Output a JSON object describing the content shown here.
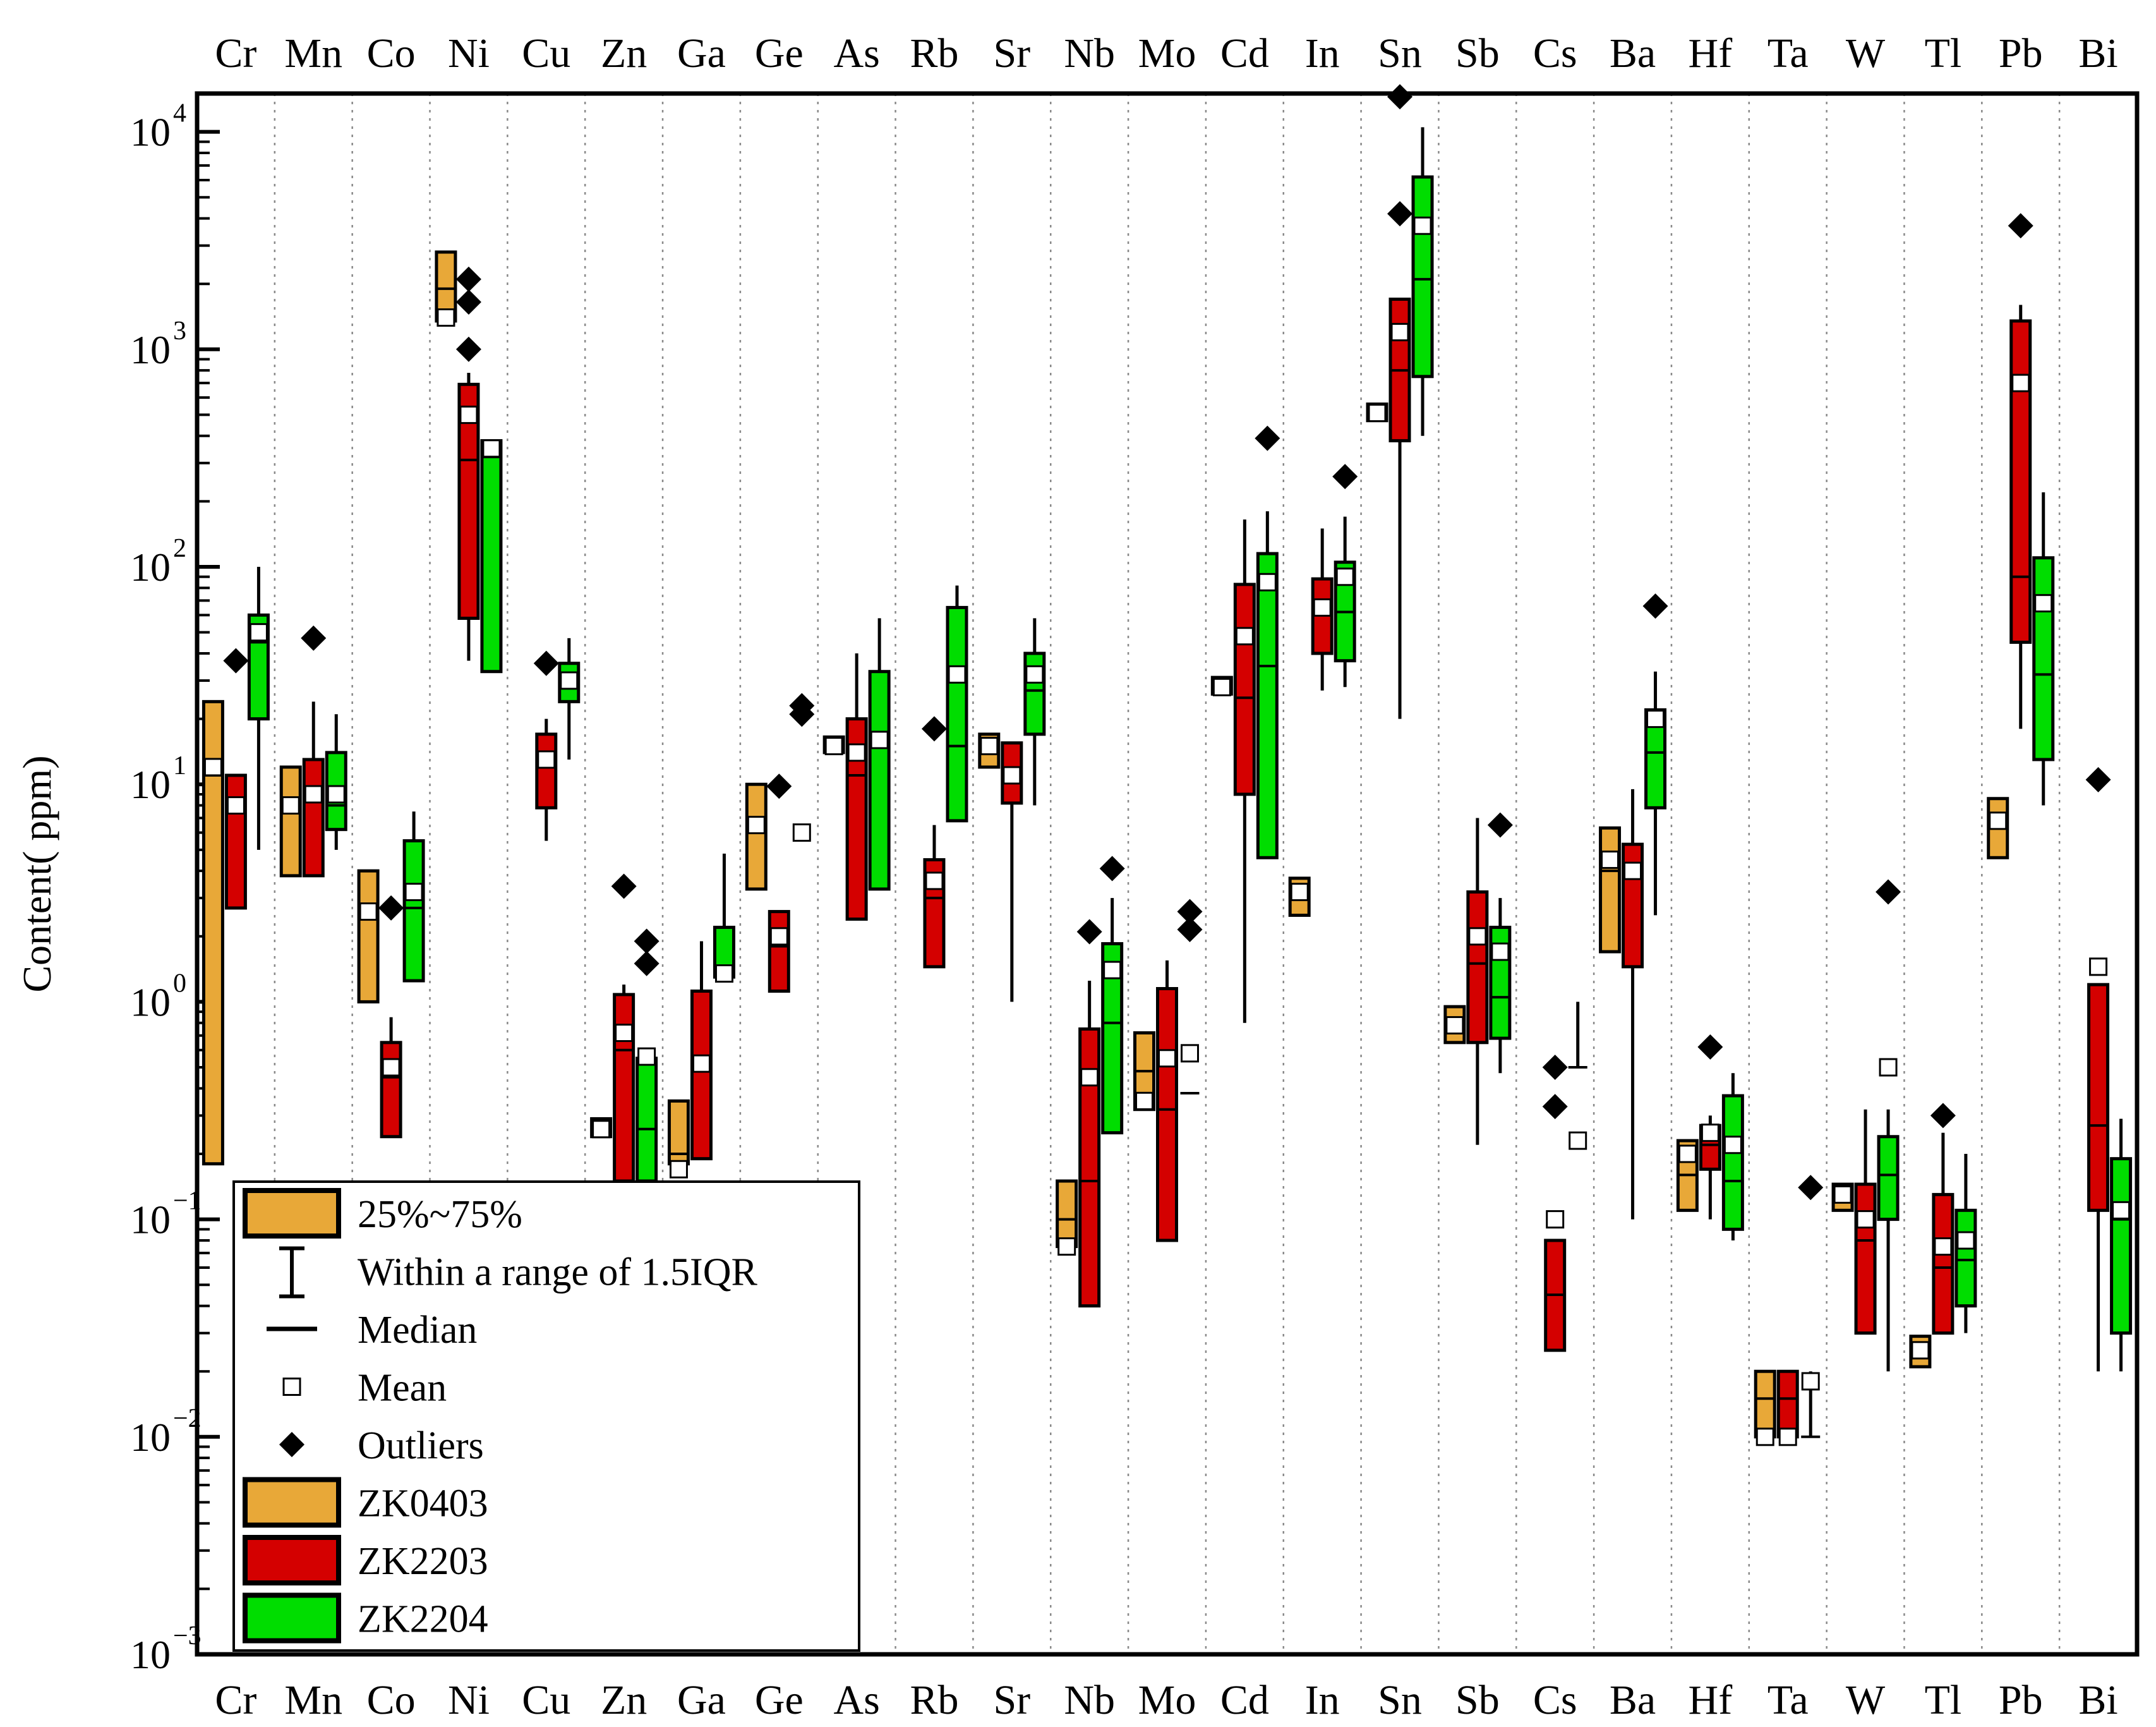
{
  "chart_data": {
    "type": "box",
    "title": "",
    "xlabel": "",
    "ylabel": "Content(  ppm)",
    "yscale": "log",
    "ylim": [
      0.001,
      15000
    ],
    "y_ticks": [
      {
        "value": 0.001,
        "base": "10",
        "exp": "−3"
      },
      {
        "value": 0.01,
        "base": "10",
        "exp": "−2"
      },
      {
        "value": 0.1,
        "base": "10",
        "exp": "−1"
      },
      {
        "value": 1,
        "base": "10",
        "exp": "0"
      },
      {
        "value": 10,
        "base": "10",
        "exp": "1"
      },
      {
        "value": 100,
        "base": "10",
        "exp": "2"
      },
      {
        "value": 1000,
        "base": "10",
        "exp": "3"
      },
      {
        "value": 10000,
        "base": "10",
        "exp": "4"
      }
    ],
    "categories": [
      "Cr",
      "Mn",
      "Co",
      "Ni",
      "Cu",
      "Zn",
      "Ga",
      "Ge",
      "As",
      "Rb",
      "Sr",
      "Nb",
      "Mo",
      "Cd",
      "In",
      "Sn",
      "Sb",
      "Cs",
      "Ba",
      "Hf",
      "Ta",
      "W",
      "Tl",
      "Pb",
      "Bi"
    ],
    "grid": "vertical dotted separators between elements",
    "legend_position": "bottom-left",
    "legend": {
      "items": [
        {
          "key": "iqr",
          "label": "25%~75%",
          "swatch": "#E8A838"
        },
        {
          "key": "whisker",
          "label": "Within a range of 1.5IQR"
        },
        {
          "key": "median",
          "label": "Median"
        },
        {
          "key": "mean",
          "label": "Mean"
        },
        {
          "key": "outlier",
          "label": "Outliers"
        },
        {
          "key": "s0",
          "label": "ZK0403",
          "swatch": "#E8A838"
        },
        {
          "key": "s1",
          "label": "ZK2203",
          "swatch": "#D40000"
        },
        {
          "key": "s2",
          "label": "ZK2204",
          "swatch": "#00DD00"
        }
      ]
    },
    "series": [
      {
        "name": "ZK0403",
        "color": "#E8A838",
        "boxes": [
          {
            "cat": "Cr",
            "q1": 0.18,
            "q3": 24,
            "median": 11,
            "mean": 12
          },
          {
            "cat": "Mn",
            "q1": 3.8,
            "q3": 12,
            "median": 7.5,
            "mean": 8
          },
          {
            "cat": "Co",
            "q1": 1.0,
            "q3": 4.0,
            "median": 2.4,
            "mean": 2.6
          },
          {
            "cat": "Ni",
            "q1": 1350,
            "q3": 2800,
            "median": 1900,
            "mean": 1400
          },
          {
            "cat": "Zn",
            "q1": 0.24,
            "q3": 0.29,
            "median": 0.26,
            "mean": 0.26
          },
          {
            "cat": "Ga",
            "q1": 0.18,
            "q3": 0.35,
            "median": 0.2,
            "mean": 0.17
          },
          {
            "cat": "Ge",
            "q1": 3.3,
            "q3": 10,
            "median": 6.5,
            "mean": 6.5
          },
          {
            "cat": "As",
            "q1": 14,
            "q3": 16.5,
            "median": 15,
            "mean": 15
          },
          {
            "cat": "Sr",
            "q1": 12,
            "q3": 17,
            "median": 14,
            "mean": 15
          },
          {
            "cat": "Nb",
            "q1": 0.075,
            "q3": 0.15,
            "median": 0.1,
            "mean": 0.075
          },
          {
            "cat": "Mo",
            "q1": 0.32,
            "q3": 0.72,
            "median": 0.48,
            "mean": 0.35
          },
          {
            "cat": "Cd",
            "q1": 26,
            "q3": 31,
            "median": 28,
            "mean": 28
          },
          {
            "cat": "In",
            "q1": 2.5,
            "q3": 3.7,
            "median": 3.1,
            "mean": 3.2
          },
          {
            "cat": "Sn",
            "q1": 470,
            "q3": 560,
            "median": 510,
            "mean": 510
          },
          {
            "cat": "Sb",
            "q1": 0.65,
            "q3": 0.95,
            "median": 0.8,
            "mean": 0.78
          },
          {
            "cat": "Ba",
            "q1": 1.7,
            "q3": 6.3,
            "median": 4.0,
            "mean": 4.5
          },
          {
            "cat": "Hf",
            "q1": 0.11,
            "q3": 0.23,
            "median": 0.16,
            "mean": 0.2
          },
          {
            "cat": "Ta",
            "q1": 0.01,
            "q3": 0.02,
            "median": 0.015,
            "mean": 0.01
          },
          {
            "cat": "W",
            "q1": 0.11,
            "q3": 0.145,
            "median": 0.125,
            "mean": 0.13
          },
          {
            "cat": "Tl",
            "q1": 0.021,
            "q3": 0.029,
            "median": 0.025,
            "mean": 0.025
          },
          {
            "cat": "Pb",
            "q1": 4.6,
            "q3": 8.6,
            "median": 6.3,
            "mean": 6.8
          }
        ]
      },
      {
        "name": "ZK2203",
        "color": "#D40000",
        "boxes": [
          {
            "cat": "Cr",
            "q1": 2.7,
            "q3": 11,
            "median": 8.5,
            "mean": 8,
            "wlo": 2.7,
            "whi": 11,
            "outliers": [
              37
            ]
          },
          {
            "cat": "Mn",
            "q1": 3.8,
            "q3": 13,
            "median": 8.5,
            "mean": 9,
            "wlo": 3.8,
            "whi": 24,
            "outliers": [
              47
            ]
          },
          {
            "cat": "Co",
            "q1": 0.24,
            "q3": 0.65,
            "median": 0.45,
            "mean": 0.5,
            "wlo": 0.24,
            "whi": 0.85,
            "outliers": [
              2.7
            ]
          },
          {
            "cat": "Ni",
            "q1": 58,
            "q3": 690,
            "median": 310,
            "mean": 500,
            "wlo": 37,
            "whi": 780,
            "outliers": [
              2100,
              1650,
              1000
            ]
          },
          {
            "cat": "Cu",
            "q1": 7.8,
            "q3": 17,
            "median": 12,
            "mean": 13,
            "wlo": 5.5,
            "whi": 20,
            "outliers": [
              36
            ]
          },
          {
            "cat": "Zn",
            "q1": 0.15,
            "q3": 1.08,
            "median": 0.6,
            "mean": 0.72,
            "wlo": 0.15,
            "whi": 1.2,
            "outliers": [
              3.4
            ]
          },
          {
            "cat": "Ga",
            "q1": 0.19,
            "q3": 1.12,
            "median": 0.55,
            "mean": 0.52,
            "wlo": 0.19,
            "whi": 1.9
          },
          {
            "cat": "Ge",
            "q1": 1.12,
            "q3": 2.6,
            "median": 1.8,
            "mean": 2.0,
            "wlo": 1.12,
            "whi": 2.6,
            "outliers": [
              9.8
            ]
          },
          {
            "cat": "As",
            "q1": 2.4,
            "q3": 20,
            "median": 11,
            "mean": 14,
            "wlo": 2.4,
            "whi": 40
          },
          {
            "cat": "Rb",
            "q1": 1.45,
            "q3": 4.5,
            "median": 3.0,
            "mean": 3.6,
            "wlo": 1.45,
            "whi": 6.5,
            "outliers": [
              18
            ]
          },
          {
            "cat": "Sr",
            "q1": 8.2,
            "q3": 15.5,
            "median": 11,
            "mean": 11,
            "wlo": 1.0,
            "whi": 15.5
          },
          {
            "cat": "Nb",
            "q1": 0.04,
            "q3": 0.75,
            "median": 0.15,
            "mean": 0.45,
            "wlo": 0.04,
            "whi": 1.25,
            "outliers": [
              2.1
            ]
          },
          {
            "cat": "Mo",
            "q1": 0.08,
            "q3": 1.15,
            "median": 0.32,
            "mean": 0.55,
            "wlo": 0.08,
            "whi": 1.55
          },
          {
            "cat": "Cd",
            "q1": 9,
            "q3": 83,
            "median": 25,
            "mean": 48,
            "wlo": 0.8,
            "whi": 165
          },
          {
            "cat": "In",
            "q1": 40,
            "q3": 88,
            "median": 60,
            "mean": 65,
            "wlo": 27,
            "whi": 150
          },
          {
            "cat": "Sn",
            "q1": 380,
            "q3": 1700,
            "median": 800,
            "mean": 1200,
            "wlo": 20,
            "whi": 1700,
            "outliers": [
              4200,
              14500
            ]
          },
          {
            "cat": "Sb",
            "q1": 0.65,
            "q3": 3.2,
            "median": 1.5,
            "mean": 2.0,
            "wlo": 0.22,
            "whi": 7.0
          },
          {
            "cat": "Cs",
            "q1": 0.025,
            "q3": 0.08,
            "median": 0.045,
            "mean": 0.1,
            "wlo": 0.025,
            "whi": 0.08,
            "outliers": [
              0.5,
              0.33
            ]
          },
          {
            "cat": "Ba",
            "q1": 1.45,
            "q3": 5.3,
            "median": 3.8,
            "mean": 4.0,
            "wlo": 0.1,
            "whi": 9.5
          },
          {
            "cat": "Hf",
            "q1": 0.17,
            "q3": 0.27,
            "median": 0.22,
            "mean": 0.25,
            "wlo": 0.1,
            "whi": 0.3,
            "outliers": [
              0.62
            ]
          },
          {
            "cat": "Ta",
            "q1": 0.01,
            "q3": 0.02,
            "median": 0.015,
            "mean": 0.01,
            "wlo": 0.01,
            "whi": 0.02
          },
          {
            "cat": "W",
            "q1": 0.03,
            "q3": 0.145,
            "median": 0.08,
            "mean": 0.1,
            "wlo": 0.03,
            "whi": 0.32
          },
          {
            "cat": "Tl",
            "q1": 0.03,
            "q3": 0.13,
            "median": 0.06,
            "mean": 0.075,
            "wlo": 0.03,
            "whi": 0.25,
            "outliers": [
              0.3
            ]
          },
          {
            "cat": "Pb",
            "q1": 45,
            "q3": 1350,
            "median": 90,
            "mean": 700,
            "wlo": 18,
            "whi": 1600,
            "outliers": [
              3700
            ]
          },
          {
            "cat": "Bi",
            "q1": 0.11,
            "q3": 1.2,
            "median": 0.27,
            "mean": 1.45,
            "wlo": 0.02,
            "whi": 1.2,
            "outliers": [
              10.5
            ]
          }
        ]
      },
      {
        "name": "ZK2204",
        "color": "#00DD00",
        "boxes": [
          {
            "cat": "Cr",
            "q1": 20,
            "q3": 60,
            "median": 45,
            "mean": 50,
            "wlo": 5,
            "whi": 100
          },
          {
            "cat": "Mn",
            "q1": 6.2,
            "q3": 14,
            "median": 8,
            "mean": 9,
            "wlo": 5,
            "whi": 21
          },
          {
            "cat": "Co",
            "q1": 1.25,
            "q3": 5.5,
            "median": 2.7,
            "mean": 3.2,
            "wlo": 1.25,
            "whi": 7.5
          },
          {
            "cat": "Ni",
            "q1": 33,
            "q3": 380,
            "median": 320,
            "mean": 350,
            "wlo": 33,
            "whi": 380
          },
          {
            "cat": "Cu",
            "q1": 24,
            "q3": 36,
            "median": 28,
            "mean": 30,
            "wlo": 13,
            "whi": 47
          },
          {
            "cat": "Zn",
            "q1": 0.15,
            "q3": 0.55,
            "median": 0.26,
            "mean": 0.56,
            "wlo": 0.15,
            "whi": 0.55,
            "outliers": [
              1.9,
              1.5
            ]
          },
          {
            "cat": "Ga",
            "q1": 1.3,
            "q3": 2.2,
            "median": 1.4,
            "mean": 1.35,
            "wlo": 1.3,
            "whi": 4.8
          },
          {
            "cat": "Ge",
            "mean": 6.0,
            "outliers": [
              23,
              21
            ]
          },
          {
            "cat": "As",
            "q1": 3.3,
            "q3": 33,
            "median": 15,
            "mean": 16,
            "wlo": 3.3,
            "whi": 58
          },
          {
            "cat": "Rb",
            "q1": 6.8,
            "q3": 65,
            "median": 15,
            "mean": 32,
            "wlo": 6.8,
            "whi": 82
          },
          {
            "cat": "Sr",
            "q1": 17,
            "q3": 40,
            "median": 27,
            "mean": 32,
            "wlo": 8,
            "whi": 58
          },
          {
            "cat": "Nb",
            "q1": 0.25,
            "q3": 1.85,
            "median": 0.8,
            "mean": 1.4,
            "wlo": 0.25,
            "whi": 3.0,
            "outliers": [
              4.1
            ]
          },
          {
            "cat": "Mo",
            "median": 0.38,
            "mean": 0.58,
            "outliers": [
              2.6,
              2.15
            ]
          },
          {
            "cat": "Cd",
            "q1": 4.6,
            "q3": 115,
            "median": 35,
            "mean": 85,
            "wlo": 4.6,
            "whi": 180,
            "outliers": [
              390
            ]
          },
          {
            "cat": "In",
            "q1": 37,
            "q3": 105,
            "median": 62,
            "mean": 90,
            "wlo": 28,
            "whi": 170,
            "outliers": [
              260
            ]
          },
          {
            "cat": "Sn",
            "q1": 750,
            "q3": 6200,
            "median": 2100,
            "mean": 3700,
            "wlo": 400,
            "whi": 10500
          },
          {
            "cat": "Sb",
            "q1": 0.68,
            "q3": 2.2,
            "median": 1.05,
            "mean": 1.7,
            "wlo": 0.47,
            "whi": 3.0,
            "outliers": [
              6.5
            ]
          },
          {
            "cat": "Cs",
            "median": 0.5,
            "mean": 0.23,
            "wlo": 0.5,
            "whi": 1.0
          },
          {
            "cat": "Ba",
            "q1": 7.8,
            "q3": 22,
            "median": 14,
            "mean": 20,
            "wlo": 2.5,
            "whi": 33,
            "outliers": [
              66
            ]
          },
          {
            "cat": "Hf",
            "q1": 0.09,
            "q3": 0.37,
            "median": 0.15,
            "mean": 0.22,
            "wlo": 0.08,
            "whi": 0.47
          },
          {
            "cat": "Ta",
            "median": 0.01,
            "mean": 0.018,
            "wlo": 0.01,
            "whi": 0.02,
            "outliers": [
              0.14
            ]
          },
          {
            "cat": "W",
            "q1": 0.1,
            "q3": 0.24,
            "median": 0.16,
            "mean": 0.5,
            "wlo": 0.02,
            "whi": 0.32,
            "outliers": [
              3.2
            ]
          },
          {
            "cat": "Tl",
            "q1": 0.04,
            "q3": 0.11,
            "median": 0.065,
            "mean": 0.08,
            "wlo": 0.03,
            "whi": 0.2
          },
          {
            "cat": "Pb",
            "q1": 13,
            "q3": 110,
            "median": 32,
            "mean": 68,
            "wlo": 8,
            "whi": 220
          },
          {
            "cat": "Bi",
            "q1": 0.03,
            "q3": 0.19,
            "median": 0.1,
            "mean": 0.11,
            "wlo": 0.02,
            "whi": 0.29
          }
        ]
      }
    ]
  }
}
